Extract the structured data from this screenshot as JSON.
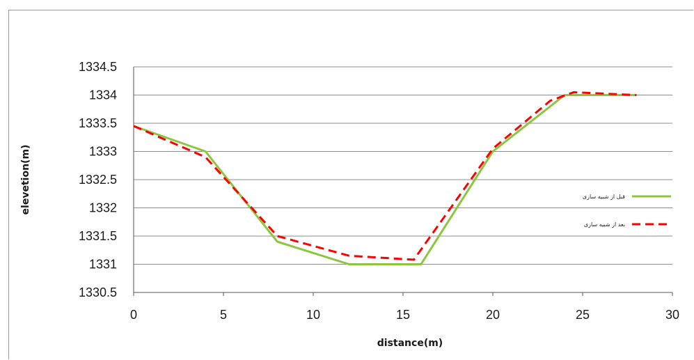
{
  "chart_data": {
    "type": "line",
    "xlabel": "distance(m)",
    "ylabel": "elevetion(m)",
    "xlim": [
      0,
      30
    ],
    "ylim": [
      1330.5,
      1334.5
    ],
    "xticks": [
      0,
      5,
      10,
      15,
      20,
      25,
      30
    ],
    "yticks": [
      1330.5,
      1331,
      1331.5,
      1332,
      1332.5,
      1333,
      1333.5,
      1334,
      1334.5
    ],
    "grid": "horizontal",
    "legend_position": "right",
    "series": [
      {
        "name": "قبل از شبیه سازی",
        "color": "#8cc63f",
        "style": "solid",
        "x": [
          0,
          4,
          8,
          12,
          16,
          20,
          24,
          28
        ],
        "y": [
          1333.45,
          1333.0,
          1331.4,
          1331.0,
          1331.0,
          1333.0,
          1334.0,
          1334.0
        ]
      },
      {
        "name": "بعد از شبیه سازی",
        "color": "#ff0000",
        "style": "dashed",
        "x": [
          0,
          4,
          8,
          12,
          15.6,
          20,
          23.2,
          24.5,
          28
        ],
        "y": [
          1333.45,
          1332.9,
          1331.5,
          1331.15,
          1331.08,
          1333.05,
          1333.9,
          1334.05,
          1334.0
        ]
      }
    ]
  }
}
